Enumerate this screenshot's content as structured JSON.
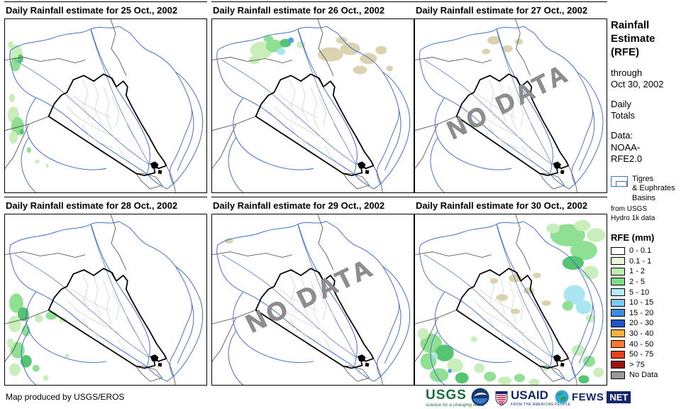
{
  "panels": [
    {
      "title": "Daily Rainfall estimate for 25 Oct., 2002",
      "no_data": false
    },
    {
      "title": "Daily Rainfall estimate for 26 Oct., 2002",
      "no_data": false
    },
    {
      "title": "Daily Rainfall estimate for 27 Oct., 2002",
      "no_data": true
    },
    {
      "title": "Daily Rainfall estimate for 28 Oct., 2002",
      "no_data": false
    },
    {
      "title": "Daily Rainfall estimate for 29 Oct., 2002",
      "no_data": true
    },
    {
      "title": "Daily Rainfall estimate for 30 Oct., 2002",
      "no_data": false
    }
  ],
  "no_data_label": "NO DATA",
  "sidebar": {
    "title": "Rainfall\nEstimate\n(RFE)",
    "through": "through\nOct 30, 2002",
    "totals": "Daily\nTotals",
    "data_line": "Data:\nNOAA-\nRFE2.0",
    "basins_label": "Tigres\n& Euphrates\nBasins",
    "basins_source": "from USGS\nHydro 1k data",
    "basin_outline_color": "#4070C8",
    "rfe_title": "RFE (mm)",
    "legend_items": [
      {
        "label": "0 - 0.1",
        "color": "#FFFFFF"
      },
      {
        "label": "0.1 - 1",
        "color": "#E6F8DE"
      },
      {
        "label": "1 - 2",
        "color": "#BCEFAE"
      },
      {
        "label": "2 - 5",
        "color": "#7CDE86"
      },
      {
        "label": "5 - 10",
        "color": "#B8ECF4"
      },
      {
        "label": "10 - 15",
        "color": "#7CC8F0"
      },
      {
        "label": "15 - 20",
        "color": "#3E8FE0"
      },
      {
        "label": "20 - 30",
        "color": "#2255C4"
      },
      {
        "label": "30 - 40",
        "color": "#FBB03C"
      },
      {
        "label": "40 - 50",
        "color": "#F4792B"
      },
      {
        "label": "50 - 75",
        "color": "#E8401C"
      },
      {
        "label": "> 75",
        "color": "#9C1512"
      },
      {
        "label": "No Data",
        "color": "#999999"
      }
    ]
  },
  "footer": {
    "credit": "Map produced by USGS/EROS",
    "logos": {
      "usgs": {
        "text": "USGS",
        "tagline": "science for a changing world"
      },
      "noaa": {
        "name": "noaa-emblem"
      },
      "usaid": {
        "text": "USAID",
        "tagline": "FROM THE AMERICAN PEOPLE"
      },
      "fewsnet": {
        "text": "FEWS",
        "text2": "NET"
      }
    }
  }
}
